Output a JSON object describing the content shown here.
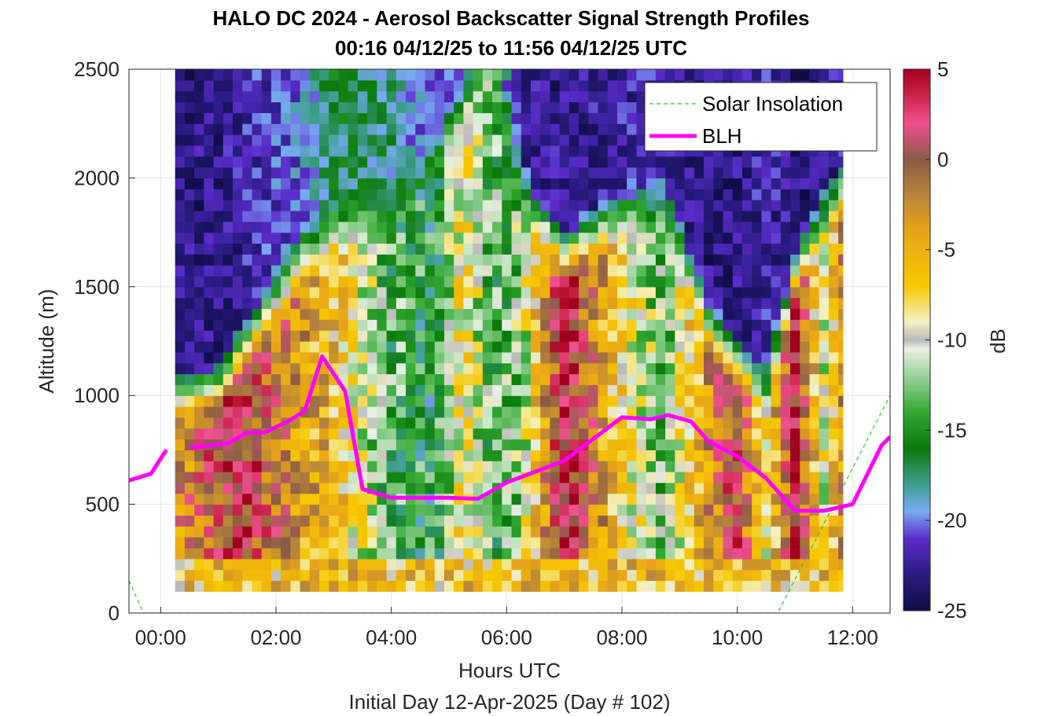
{
  "chart_data": {
    "type": "heatmap",
    "title": "HALO DC 2024 - Aerosol Backscatter Signal Strength Profiles",
    "subtitle": "00:16 04/12/25 to 11:56 04/12/25  UTC",
    "xlabel": "Hours UTC",
    "xlabel2": "Initial Day 12-Apr-2025 (Day # 102)",
    "ylabel": "Altitude (m)",
    "colorbar_label": "dB",
    "xlim_hours": [
      -0.55,
      12.65
    ],
    "ylim": [
      0,
      2500
    ],
    "x_ticks": [
      {
        "value": 0,
        "label": "00:00"
      },
      {
        "value": 2,
        "label": "02:00"
      },
      {
        "value": 4,
        "label": "04:00"
      },
      {
        "value": 6,
        "label": "06:00"
      },
      {
        "value": 8,
        "label": "08:00"
      },
      {
        "value": 10,
        "label": "10:00"
      },
      {
        "value": 12,
        "label": "12:00"
      }
    ],
    "y_ticks": [
      {
        "value": 0,
        "label": "0"
      },
      {
        "value": 500,
        "label": "500"
      },
      {
        "value": 1000,
        "label": "1000"
      },
      {
        "value": 1500,
        "label": "1500"
      },
      {
        "value": 2000,
        "label": "2000"
      },
      {
        "value": 2500,
        "label": "2500"
      }
    ],
    "color_ticks": [
      {
        "value": 5,
        "label": "5"
      },
      {
        "value": 0,
        "label": "0"
      },
      {
        "value": -5,
        "label": "-5"
      },
      {
        "value": -10,
        "label": "-10"
      },
      {
        "value": -15,
        "label": "-15"
      },
      {
        "value": -20,
        "label": "-20"
      },
      {
        "value": -25,
        "label": "-25"
      }
    ],
    "clim": [
      -25,
      5
    ],
    "grid": true,
    "legend_position": "top-right",
    "colormap": [
      {
        "v": -25,
        "c": "#0e0c45"
      },
      {
        "v": -23,
        "c": "#2a1b82"
      },
      {
        "v": -21,
        "c": "#5b2ccb"
      },
      {
        "v": -19.5,
        "c": "#7aa9f5"
      },
      {
        "v": -18,
        "c": "#3e9e8e"
      },
      {
        "v": -16,
        "c": "#0a7a0a"
      },
      {
        "v": -14,
        "c": "#33a933"
      },
      {
        "v": -12,
        "c": "#9ad29a"
      },
      {
        "v": -10.5,
        "c": "#e9f0e2"
      },
      {
        "v": -10,
        "c": "#b9b9b9"
      },
      {
        "v": -9,
        "c": "#f5f1c5"
      },
      {
        "v": -7,
        "c": "#f6c800"
      },
      {
        "v": -4,
        "c": "#e7a418"
      },
      {
        "v": -2,
        "c": "#b8863a"
      },
      {
        "v": 0,
        "c": "#8b5a46"
      },
      {
        "v": 2,
        "c": "#f05090"
      },
      {
        "v": 4,
        "c": "#c01838"
      },
      {
        "v": 5,
        "c": "#a0001e"
      }
    ],
    "backscatter": {
      "units": "dB",
      "time_start_hours": 0.25,
      "time_step_hours": 0.1667,
      "altitude_start_m": 100,
      "altitude_step_m": 50,
      "altitude_rows": 48,
      "profile_keyframes": [
        {
          "t": 0.25,
          "pbl_top": 850,
          "pbl_db": -3,
          "aloft_db": -23
        },
        {
          "t": 1.0,
          "pbl_top": 900,
          "pbl_db": 1,
          "aloft_db": -23
        },
        {
          "t": 1.5,
          "pbl_top": 1100,
          "pbl_db": 2,
          "aloft_db": -22
        },
        {
          "t": 2.5,
          "pbl_top": 1500,
          "pbl_db": -4,
          "aloft_db": -20
        },
        {
          "t": 3.0,
          "pbl_top": 1600,
          "pbl_db": -6,
          "aloft_db": -17
        },
        {
          "t": 4.0,
          "pbl_top": 1700,
          "pbl_db": -14,
          "aloft_db": -18
        },
        {
          "t": 4.75,
          "pbl_top": 2000,
          "pbl_db": -16,
          "aloft_db": -21
        },
        {
          "t": 5.25,
          "pbl_top": 2200,
          "pbl_db": -8,
          "aloft_db": -21
        },
        {
          "t": 5.75,
          "pbl_top": 2500,
          "pbl_db": -14,
          "aloft_db": -17
        },
        {
          "t": 6.25,
          "pbl_top": 1800,
          "pbl_db": -12,
          "aloft_db": -22
        },
        {
          "t": 7.0,
          "pbl_top": 1500,
          "pbl_db": 4,
          "aloft_db": -23
        },
        {
          "t": 8.0,
          "pbl_top": 1700,
          "pbl_db": -8,
          "aloft_db": -22
        },
        {
          "t": 8.75,
          "pbl_top": 1750,
          "pbl_db": -13,
          "aloft_db": -22
        },
        {
          "t": 9.5,
          "pbl_top": 1200,
          "pbl_db": -3,
          "aloft_db": -23
        },
        {
          "t": 10.0,
          "pbl_top": 1000,
          "pbl_db": 2,
          "aloft_db": -23
        },
        {
          "t": 10.5,
          "pbl_top": 900,
          "pbl_db": -9,
          "aloft_db": -22
        },
        {
          "t": 11.0,
          "pbl_top": 1400,
          "pbl_db": 3,
          "aloft_db": -23
        },
        {
          "t": 11.5,
          "pbl_top": 1700,
          "pbl_db": -10,
          "aloft_db": -23
        },
        {
          "t": 11.83,
          "pbl_top": 1800,
          "pbl_db": -3,
          "aloft_db": -22
        }
      ]
    },
    "series": [
      {
        "name": "Solar Insolation",
        "style": "dashed",
        "color": "#22cc22",
        "x": [
          -0.55,
          -0.3,
          10.7,
          12.65
        ],
        "y": [
          150,
          0,
          0,
          1000
        ]
      },
      {
        "name": "BLH",
        "style": "solid",
        "color": "#ff00ff",
        "segments": [
          {
            "x": [
              -0.55,
              -0.17,
              0.1
            ],
            "y": [
              610,
              640,
              750
            ]
          },
          {
            "x": [
              0.5,
              1.17,
              1.5,
              1.8,
              2.2,
              2.5,
              2.8,
              3.2,
              3.5,
              4.0,
              5.0,
              5.5,
              6.0,
              6.5,
              7.0,
              7.5,
              8.0,
              8.5,
              8.8,
              9.2,
              9.5,
              10.0,
              10.5,
              11.0,
              11.5,
              12.0,
              12.5,
              12.65
            ],
            "y": [
              760,
              780,
              830,
              830,
              880,
              930,
              1180,
              1020,
              570,
              530,
              530,
              525,
              600,
              650,
              700,
              800,
              900,
              890,
              910,
              880,
              790,
              720,
              620,
              470,
              470,
              500,
              770,
              810
            ]
          }
        ]
      }
    ]
  }
}
